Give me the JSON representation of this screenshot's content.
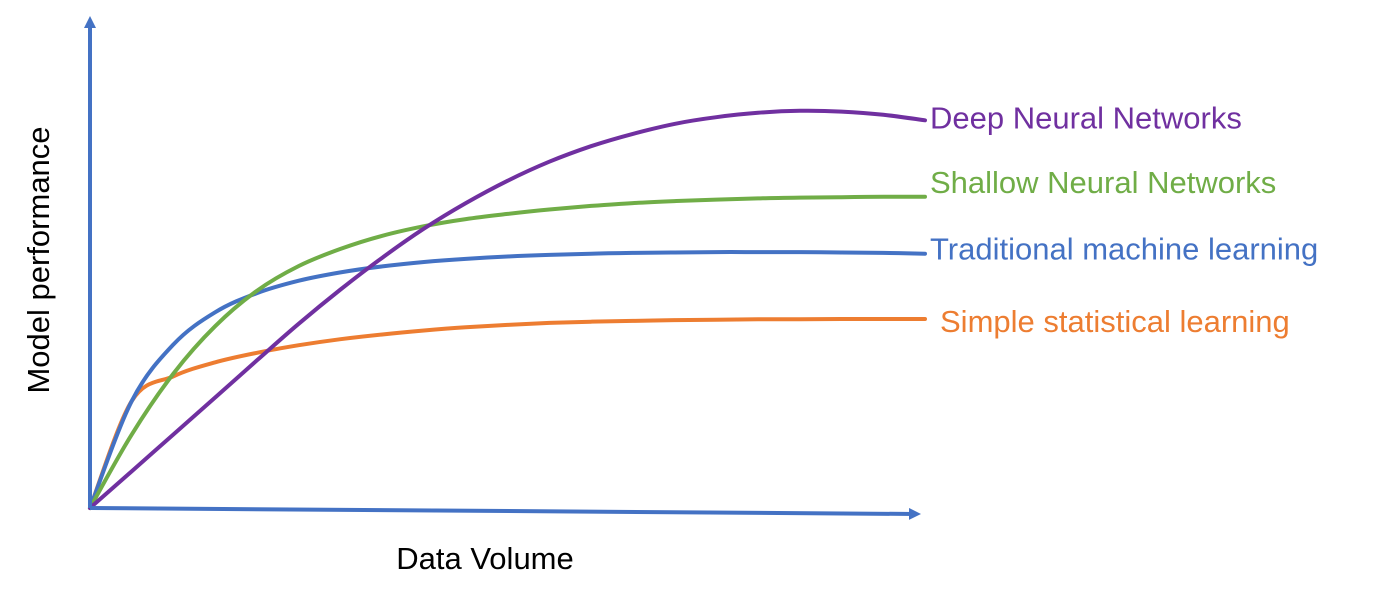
{
  "chart_data": {
    "type": "line",
    "title": "",
    "xlabel": "Data Volume",
    "ylabel": "Model performance",
    "xlim": [
      0,
      100
    ],
    "ylim": [
      0,
      100
    ],
    "grid": false,
    "axis_color": "#4472C4",
    "x": [
      0,
      5,
      10,
      15,
      20,
      25,
      30,
      35,
      40,
      45,
      50,
      55,
      60,
      65,
      70,
      75,
      80,
      85,
      90,
      95,
      100
    ],
    "series": [
      {
        "name": "Deep Neural Networks",
        "color": "#7030A0",
        "values": [
          0,
          9.25,
          18.5,
          27.8,
          37.1,
          46.3,
          54.9,
          62.9,
          70.2,
          76.6,
          82.2,
          87.0,
          90.9,
          94.0,
          96.5,
          98.2,
          99.3,
          99.8,
          99.6,
          98.8,
          97.4
        ]
      },
      {
        "name": "Shallow Neural Networks",
        "color": "#70AD47",
        "values": [
          0,
          18.5,
          33.8,
          45.7,
          54.6,
          60.8,
          65.1,
          68.4,
          70.8,
          72.6,
          73.9,
          75.0,
          75.9,
          76.6,
          77.1,
          77.5,
          77.8,
          78.0,
          78.1,
          78.2,
          78.2
        ]
      },
      {
        "name": "Traditional machine learning",
        "color": "#4472C4",
        "values": [
          0,
          26.9,
          41.1,
          49.2,
          54.0,
          57.1,
          59.2,
          60.7,
          61.8,
          62.6,
          63.2,
          63.6,
          63.9,
          64.1,
          64.2,
          64.3,
          64.3,
          64.3,
          64.2,
          64.1,
          63.9
        ]
      },
      {
        "name": "Simple statistical learning",
        "color": "#ED7D31",
        "values": [
          0,
          26.9,
          33.1,
          36.6,
          39.0,
          40.9,
          42.4,
          43.6,
          44.6,
          45.4,
          46.0,
          46.5,
          46.8,
          47.0,
          47.2,
          47.3,
          47.4,
          47.4,
          47.5,
          47.5,
          47.5
        ]
      }
    ]
  }
}
